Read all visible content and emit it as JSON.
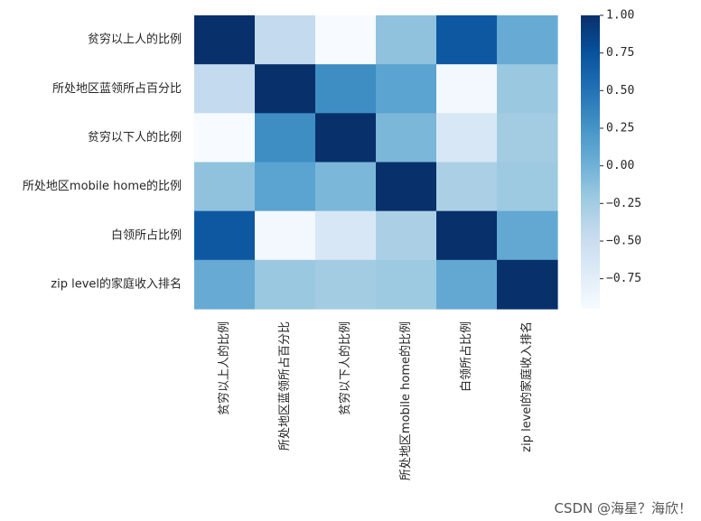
{
  "chart_data": {
    "type": "heatmap",
    "title": "",
    "xlabel": "",
    "ylabel": "",
    "colormap": "Blues",
    "row_labels": [
      "贫穷以上人的比例",
      "所处地区蓝领所占百分比",
      "贫穷以下人的比例",
      "所处地区mobile home的比例",
      "白领所占比例",
      "zip level的家庭收入排名"
    ],
    "col_labels": [
      "贫穷以上人的比例",
      "所处地区蓝领所占百分比",
      "贫穷以下人的比例",
      "所处地区mobile home的比例",
      "白领所占比例",
      "zip level的家庭收入排名"
    ],
    "values": [
      [
        1.0,
        -0.45,
        -0.95,
        -0.15,
        0.7,
        0.05
      ],
      [
        -0.45,
        1.0,
        0.3,
        0.12,
        -0.9,
        -0.2
      ],
      [
        -0.95,
        0.3,
        1.0,
        -0.05,
        -0.65,
        -0.25
      ],
      [
        -0.15,
        0.12,
        -0.05,
        1.0,
        -0.3,
        -0.22
      ],
      [
        0.7,
        -0.9,
        -0.65,
        -0.3,
        1.0,
        0.08
      ],
      [
        0.05,
        -0.2,
        -0.25,
        -0.22,
        0.08,
        1.0
      ]
    ],
    "vmin": -0.95,
    "vmax": 1.0,
    "colorbar_ticks": [
      1.0,
      0.75,
      0.5,
      0.25,
      0.0,
      -0.25,
      -0.5,
      -0.75
    ],
    "colorbar_tick_labels": [
      "1.00",
      "0.75",
      "0.50",
      "0.25",
      "0.00",
      "−0.25",
      "−0.50",
      "−0.75"
    ]
  },
  "watermark": "CSDN @海星？海欣！"
}
